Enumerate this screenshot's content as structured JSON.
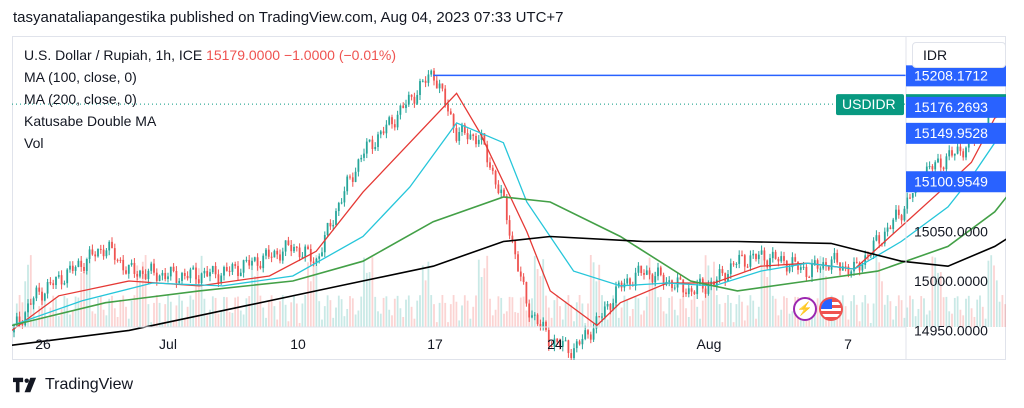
{
  "header": {
    "publish_line": "tasyanataliapangestika published on TradingView.com, Aug 04, 2023 07:33 UTC+7"
  },
  "legend": {
    "symbol": "U.S. Dollar / Rupiah, 1h, ICE",
    "last_price": "15179.0000",
    "change": "−1.0000 (−0.01%)",
    "ma100": "MA (100, close, 0)",
    "ma200": "MA (200, close, 0)",
    "double_ma": "Katusabe Double MA",
    "volume": "Vol"
  },
  "currency": "IDR",
  "footer": {
    "brand": "TradingView"
  },
  "colors": {
    "up": "#26a69a",
    "down": "#ef5350",
    "ma_fast": "#e53935",
    "ma_mid": "#26c6da",
    "ma100": "#43a047",
    "ma200": "#000000",
    "hline": "#2962ff",
    "last_price_bg": "#089981"
  },
  "icons": {
    "bolt": "lightning-icon",
    "flag": "us-flag-icon"
  },
  "chart_data": {
    "type": "candlestick",
    "symbol": "USDIDR",
    "interval": "1h",
    "x_axis_labels": [
      "26",
      "Jul",
      "10",
      "17",
      "24",
      "Aug",
      "7"
    ],
    "y_axis_labels": [
      "15050.0000",
      "15000.0000",
      "14950.0000"
    ],
    "ylim": [
      14920,
      15248
    ],
    "price_tags": [
      {
        "label": "",
        "value": "15208.1712",
        "y": 15208.1712,
        "style": "blue"
      },
      {
        "label": "USDIDR",
        "value": "15179.0000",
        "y": 15179.0,
        "style": "green"
      },
      {
        "label": "",
        "value": "15176.2693",
        "y": 15176.2693,
        "style": "blue"
      },
      {
        "label": "",
        "value": "15149.9528",
        "y": 15149.9528,
        "style": "blue"
      },
      {
        "label": "",
        "value": "15100.9549",
        "y": 15100.9549,
        "style": "blue"
      }
    ],
    "horizontal_lines": [
      {
        "name": "high",
        "y": 15208.17,
        "from": "Jul 10",
        "to": "Aug 4"
      },
      {
        "name": "fast-ma-end",
        "y": 15176.27,
        "from": "Aug 4",
        "to": "Aug 4"
      },
      {
        "name": "mid-ma-end",
        "y": 15149.95,
        "from": "Aug 4",
        "to": "Aug 4"
      }
    ],
    "price_path": [
      {
        "x": "Jun 22",
        "y": 14948
      },
      {
        "x": "Jun 23",
        "y": 14985
      },
      {
        "x": "Jun 26",
        "y": 15035
      },
      {
        "x": "Jun 27",
        "y": 15010
      },
      {
        "x": "Jun 29",
        "y": 15005
      },
      {
        "x": "Jul 1",
        "y": 15008
      },
      {
        "x": "Jul 3",
        "y": 15025
      },
      {
        "x": "Jul 4",
        "y": 15035
      },
      {
        "x": "Jul 5",
        "y": 15020
      },
      {
        "x": "Jul 6",
        "y": 15080
      },
      {
        "x": "Jul 7",
        "y": 15130
      },
      {
        "x": "Jul 8",
        "y": 15155
      },
      {
        "x": "Jul 10",
        "y": 15212
      },
      {
        "x": "Jul 11",
        "y": 15150
      },
      {
        "x": "Jul 12",
        "y": 15145
      },
      {
        "x": "Jul 13",
        "y": 15080
      },
      {
        "x": "Jul 14",
        "y": 14975
      },
      {
        "x": "Jul 15",
        "y": 14940
      },
      {
        "x": "Jul 16",
        "y": 14930
      },
      {
        "x": "Jul 17",
        "y": 14958
      },
      {
        "x": "Jul 18",
        "y": 14995
      },
      {
        "x": "Jul 19",
        "y": 15010
      },
      {
        "x": "Jul 20",
        "y": 15000
      },
      {
        "x": "Jul 21",
        "y": 14990
      },
      {
        "x": "Jul 22",
        "y": 14998
      },
      {
        "x": "Jul 23",
        "y": 15020
      },
      {
        "x": "Jul 24",
        "y": 15025
      },
      {
        "x": "Jul 25",
        "y": 15020
      },
      {
        "x": "Jul 26",
        "y": 15010
      },
      {
        "x": "Jul 27",
        "y": 15020
      },
      {
        "x": "Jul 28",
        "y": 15010
      },
      {
        "x": "Jul 30",
        "y": 15070
      },
      {
        "x": "Jul 31",
        "y": 15110
      },
      {
        "x": "Aug 1",
        "y": 15125
      },
      {
        "x": "Aug 2",
        "y": 15140
      },
      {
        "x": "Aug 3",
        "y": 15175
      },
      {
        "x": "Aug 4",
        "y": 15179
      }
    ],
    "series": [
      {
        "name": "MA fast",
        "color": "#e53935",
        "points": [
          {
            "x": "Jun 22",
            "y": 14950
          },
          {
            "x": "Jun 24",
            "y": 14985
          },
          {
            "x": "Jun 27",
            "y": 15000
          },
          {
            "x": "Jun 30",
            "y": 14995
          },
          {
            "x": "Jul 3",
            "y": 15005
          },
          {
            "x": "Jul 5",
            "y": 15030
          },
          {
            "x": "Jul 7",
            "y": 15090
          },
          {
            "x": "Jul 9",
            "y": 15140
          },
          {
            "x": "Jul 11",
            "y": 15190
          },
          {
            "x": "Jul 12",
            "y": 15150
          },
          {
            "x": "Jul 14",
            "y": 15050
          },
          {
            "x": "Jul 15",
            "y": 14990
          },
          {
            "x": "Jul 17",
            "y": 14955
          },
          {
            "x": "Jul 18",
            "y": 14978
          },
          {
            "x": "Jul 20",
            "y": 14998
          },
          {
            "x": "Jul 22",
            "y": 14998
          },
          {
            "x": "Jul 24",
            "y": 15015
          },
          {
            "x": "Jul 26",
            "y": 15018
          },
          {
            "x": "Jul 28",
            "y": 15012
          },
          {
            "x": "Jul 30",
            "y": 15055
          },
          {
            "x": "Aug 1",
            "y": 15098
          },
          {
            "x": "Aug 2",
            "y": 15120
          },
          {
            "x": "Aug 3",
            "y": 15165
          },
          {
            "x": "Aug 4",
            "y": 15176
          }
        ]
      },
      {
        "name": "MA mid",
        "color": "#26c6da",
        "points": [
          {
            "x": "Jun 22",
            "y": 14955
          },
          {
            "x": "Jun 25",
            "y": 14980
          },
          {
            "x": "Jun 28",
            "y": 14998
          },
          {
            "x": "Jul 1",
            "y": 14995
          },
          {
            "x": "Jul 4",
            "y": 15005
          },
          {
            "x": "Jul 7",
            "y": 15045
          },
          {
            "x": "Jul 9",
            "y": 15095
          },
          {
            "x": "Jul 11",
            "y": 15160
          },
          {
            "x": "Jul 13",
            "y": 15140
          },
          {
            "x": "Jul 14",
            "y": 15080
          },
          {
            "x": "Jul 16",
            "y": 15010
          },
          {
            "x": "Jul 18",
            "y": 14995
          },
          {
            "x": "Jul 20",
            "y": 14998
          },
          {
            "x": "Jul 22",
            "y": 14995
          },
          {
            "x": "Jul 24",
            "y": 15010
          },
          {
            "x": "Jul 26",
            "y": 15018
          },
          {
            "x": "Jul 28",
            "y": 15012
          },
          {
            "x": "Jul 30",
            "y": 15040
          },
          {
            "x": "Aug 1",
            "y": 15075
          },
          {
            "x": "Aug 2",
            "y": 15105
          },
          {
            "x": "Aug 3",
            "y": 15140
          },
          {
            "x": "Aug 4",
            "y": 15150
          }
        ]
      },
      {
        "name": "MA (100, close, 0)",
        "color": "#43a047",
        "points": [
          {
            "x": "Jun 22",
            "y": 14955
          },
          {
            "x": "Jun 26",
            "y": 14978
          },
          {
            "x": "Jun 30",
            "y": 14990
          },
          {
            "x": "Jul 4",
            "y": 15000
          },
          {
            "x": "Jul 7",
            "y": 15020
          },
          {
            "x": "Jul 10",
            "y": 15060
          },
          {
            "x": "Jul 13",
            "y": 15085
          },
          {
            "x": "Jul 15",
            "y": 15080
          },
          {
            "x": "Jul 18",
            "y": 15045
          },
          {
            "x": "Jul 21",
            "y": 15000
          },
          {
            "x": "Jul 23",
            "y": 14990
          },
          {
            "x": "Jul 26",
            "y": 15000
          },
          {
            "x": "Jul 29",
            "y": 15010
          },
          {
            "x": "Aug 1",
            "y": 15035
          },
          {
            "x": "Aug 3",
            "y": 15070
          },
          {
            "x": "Aug 4",
            "y": 15100
          }
        ]
      },
      {
        "name": "MA (200, close, 0)",
        "color": "#000000",
        "points": [
          {
            "x": "Jun 22",
            "y": 14935
          },
          {
            "x": "Jun 27",
            "y": 14950
          },
          {
            "x": "Jul 2",
            "y": 14975
          },
          {
            "x": "Jul 6",
            "y": 14995
          },
          {
            "x": "Jul 10",
            "y": 15015
          },
          {
            "x": "Jul 13",
            "y": 15040
          },
          {
            "x": "Jul 15",
            "y": 15045
          },
          {
            "x": "Jul 19",
            "y": 15040
          },
          {
            "x": "Jul 23",
            "y": 15040
          },
          {
            "x": "Jul 27",
            "y": 15038
          },
          {
            "x": "Jul 30",
            "y": 15020
          },
          {
            "x": "Aug 1",
            "y": 15015
          },
          {
            "x": "Aug 3",
            "y": 15035
          },
          {
            "x": "Aug 4",
            "y": 15050
          }
        ]
      }
    ],
    "grid": false,
    "legend_placement": "top-left"
  }
}
